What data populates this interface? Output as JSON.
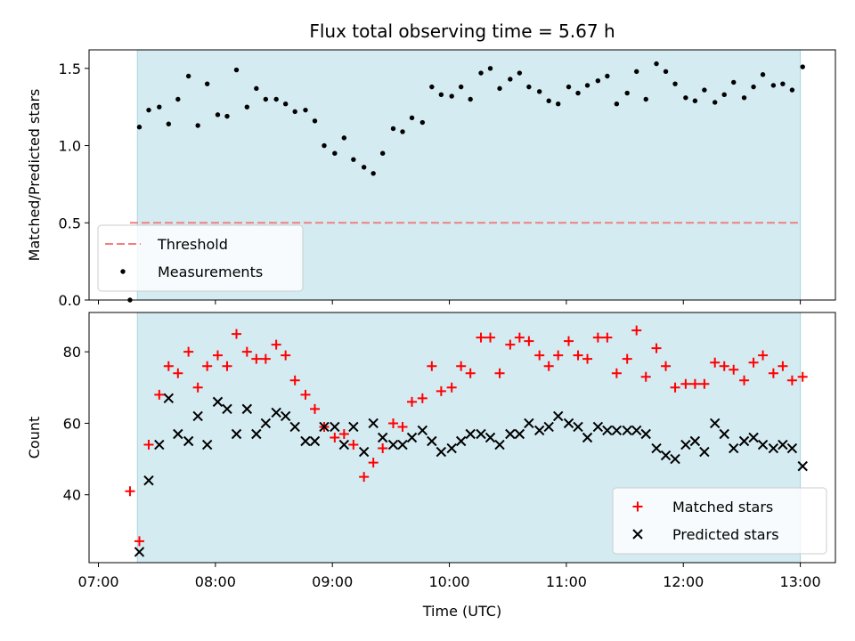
{
  "chart_data": {
    "title": "Flux total observing time = 5.67 h",
    "xlabel": "Time (UTC)",
    "x_ticks": [
      "07:00",
      "08:00",
      "09:00",
      "10:00",
      "11:00",
      "12:00",
      "13:00"
    ],
    "x_tick_hours": [
      7,
      8,
      9,
      10,
      11,
      12,
      13
    ],
    "xlim": [
      6.92,
      13.3
    ],
    "observing_window": [
      7.333,
      13.0
    ],
    "window_color": "#d4ebf2",
    "panels": [
      {
        "type": "scatter",
        "ylabel": "Matched/Predicted stars",
        "ylim": [
          0,
          1.62
        ],
        "y_ticks": [
          "0.0",
          "0.5",
          "1.0",
          "1.5"
        ],
        "y_tick_values": [
          0,
          0.5,
          1.0,
          1.5
        ],
        "threshold": {
          "name": "Threshold",
          "value": 0.5,
          "x_range": [
            7.27,
            13.0
          ],
          "color": "#f08080"
        },
        "series": [
          {
            "name": "Measurements",
            "marker": "dot",
            "color": "#000000",
            "x": [
              7.27,
              7.35,
              7.43,
              7.52,
              7.6,
              7.68,
              7.77,
              7.85,
              7.93,
              8.02,
              8.1,
              8.18,
              8.27,
              8.35,
              8.43,
              8.52,
              8.6,
              8.68,
              8.77,
              8.85,
              8.93,
              9.02,
              9.1,
              9.18,
              9.27,
              9.35,
              9.43,
              9.52,
              9.6,
              9.68,
              9.77,
              9.85,
              9.93,
              10.02,
              10.1,
              10.18,
              10.27,
              10.35,
              10.43,
              10.52,
              10.6,
              10.68,
              10.77,
              10.85,
              10.93,
              11.02,
              11.1,
              11.18,
              11.27,
              11.35,
              11.43,
              11.52,
              11.6,
              11.68,
              11.77,
              11.85,
              11.93,
              12.02,
              12.1,
              12.18,
              12.27,
              12.35,
              12.43,
              12.52,
              12.6,
              12.68,
              12.77,
              12.85,
              12.93,
              13.02
            ],
            "y": [
              0.0,
              1.12,
              1.23,
              1.25,
              1.14,
              1.3,
              1.45,
              1.13,
              1.4,
              1.2,
              1.19,
              1.49,
              1.25,
              1.37,
              1.3,
              1.3,
              1.27,
              1.22,
              1.23,
              1.16,
              1.0,
              0.95,
              1.05,
              0.91,
              0.86,
              0.82,
              0.95,
              1.11,
              1.09,
              1.18,
              1.15,
              1.38,
              1.33,
              1.32,
              1.38,
              1.3,
              1.47,
              1.5,
              1.37,
              1.43,
              1.47,
              1.38,
              1.35,
              1.29,
              1.27,
              1.38,
              1.34,
              1.39,
              1.42,
              1.45,
              1.27,
              1.34,
              1.48,
              1.3,
              1.53,
              1.48,
              1.4,
              1.31,
              1.29,
              1.36,
              1.28,
              1.33,
              1.41,
              1.31,
              1.38,
              1.46,
              1.39,
              1.4,
              1.36,
              1.51
            ]
          }
        ],
        "legend_position": "lower-left"
      },
      {
        "type": "scatter",
        "ylabel": "Count",
        "ylim": [
          21,
          91
        ],
        "y_ticks": [
          "40",
          "60",
          "80"
        ],
        "y_tick_values": [
          40,
          60,
          80
        ],
        "series": [
          {
            "name": "Matched stars",
            "marker": "plus",
            "color": "#ff0000",
            "x": [
              7.27,
              7.35,
              7.43,
              7.52,
              7.6,
              7.68,
              7.77,
              7.85,
              7.93,
              8.02,
              8.1,
              8.18,
              8.27,
              8.35,
              8.43,
              8.52,
              8.6,
              8.68,
              8.77,
              8.85,
              8.93,
              9.02,
              9.1,
              9.18,
              9.27,
              9.35,
              9.43,
              9.52,
              9.6,
              9.68,
              9.77,
              9.85,
              9.93,
              10.02,
              10.1,
              10.18,
              10.27,
              10.35,
              10.43,
              10.52,
              10.6,
              10.68,
              10.77,
              10.85,
              10.93,
              11.02,
              11.1,
              11.18,
              11.27,
              11.35,
              11.43,
              11.52,
              11.6,
              11.68,
              11.77,
              11.85,
              11.93,
              12.02,
              12.1,
              12.18,
              12.27,
              12.35,
              12.43,
              12.52,
              12.6,
              12.68,
              12.77,
              12.85,
              12.93,
              13.02
            ],
            "y": [
              41,
              27,
              54,
              68,
              76,
              74,
              80,
              70,
              76,
              79,
              76,
              85,
              80,
              78,
              78,
              82,
              79,
              72,
              68,
              64,
              59,
              56,
              57,
              54,
              45,
              49,
              53,
              60,
              59,
              66,
              67,
              76,
              69,
              70,
              76,
              74,
              84,
              84,
              74,
              82,
              84,
              83,
              79,
              76,
              79,
              83,
              79,
              78,
              84,
              84,
              74,
              78,
              86,
              73,
              81,
              76,
              70,
              71,
              71,
              71,
              77,
              76,
              75,
              72,
              77,
              79,
              74,
              76,
              72,
              73
            ]
          },
          {
            "name": "Predicted stars",
            "marker": "x",
            "color": "#000000",
            "x": [
              7.35,
              7.43,
              7.52,
              7.6,
              7.68,
              7.77,
              7.85,
              7.93,
              8.02,
              8.1,
              8.18,
              8.27,
              8.35,
              8.43,
              8.52,
              8.6,
              8.68,
              8.77,
              8.85,
              8.93,
              9.02,
              9.1,
              9.18,
              9.27,
              9.35,
              9.43,
              9.52,
              9.6,
              9.68,
              9.77,
              9.85,
              9.93,
              10.02,
              10.1,
              10.18,
              10.27,
              10.35,
              10.43,
              10.52,
              10.6,
              10.68,
              10.77,
              10.85,
              10.93,
              11.02,
              11.1,
              11.18,
              11.27,
              11.35,
              11.43,
              11.52,
              11.6,
              11.68,
              11.77,
              11.85,
              11.93,
              12.02,
              12.1,
              12.18,
              12.27,
              12.35,
              12.43,
              12.52,
              12.6,
              12.68,
              12.77,
              12.85,
              12.93,
              13.02
            ],
            "y": [
              24,
              44,
              54,
              67,
              57,
              55,
              62,
              54,
              66,
              64,
              57,
              64,
              57,
              60,
              63,
              62,
              59,
              55,
              55,
              59,
              59,
              54,
              59,
              52,
              60,
              56,
              54,
              54,
              56,
              58,
              55,
              52,
              53,
              55,
              57,
              57,
              56,
              54,
              57,
              57,
              60,
              58,
              59,
              62,
              60,
              59,
              56,
              59,
              58,
              58,
              58,
              58,
              57,
              53,
              51,
              50,
              54,
              55,
              52,
              60,
              57,
              53,
              55,
              56,
              54,
              53,
              54,
              53,
              48
            ]
          }
        ],
        "legend_position": "lower-right"
      }
    ]
  }
}
